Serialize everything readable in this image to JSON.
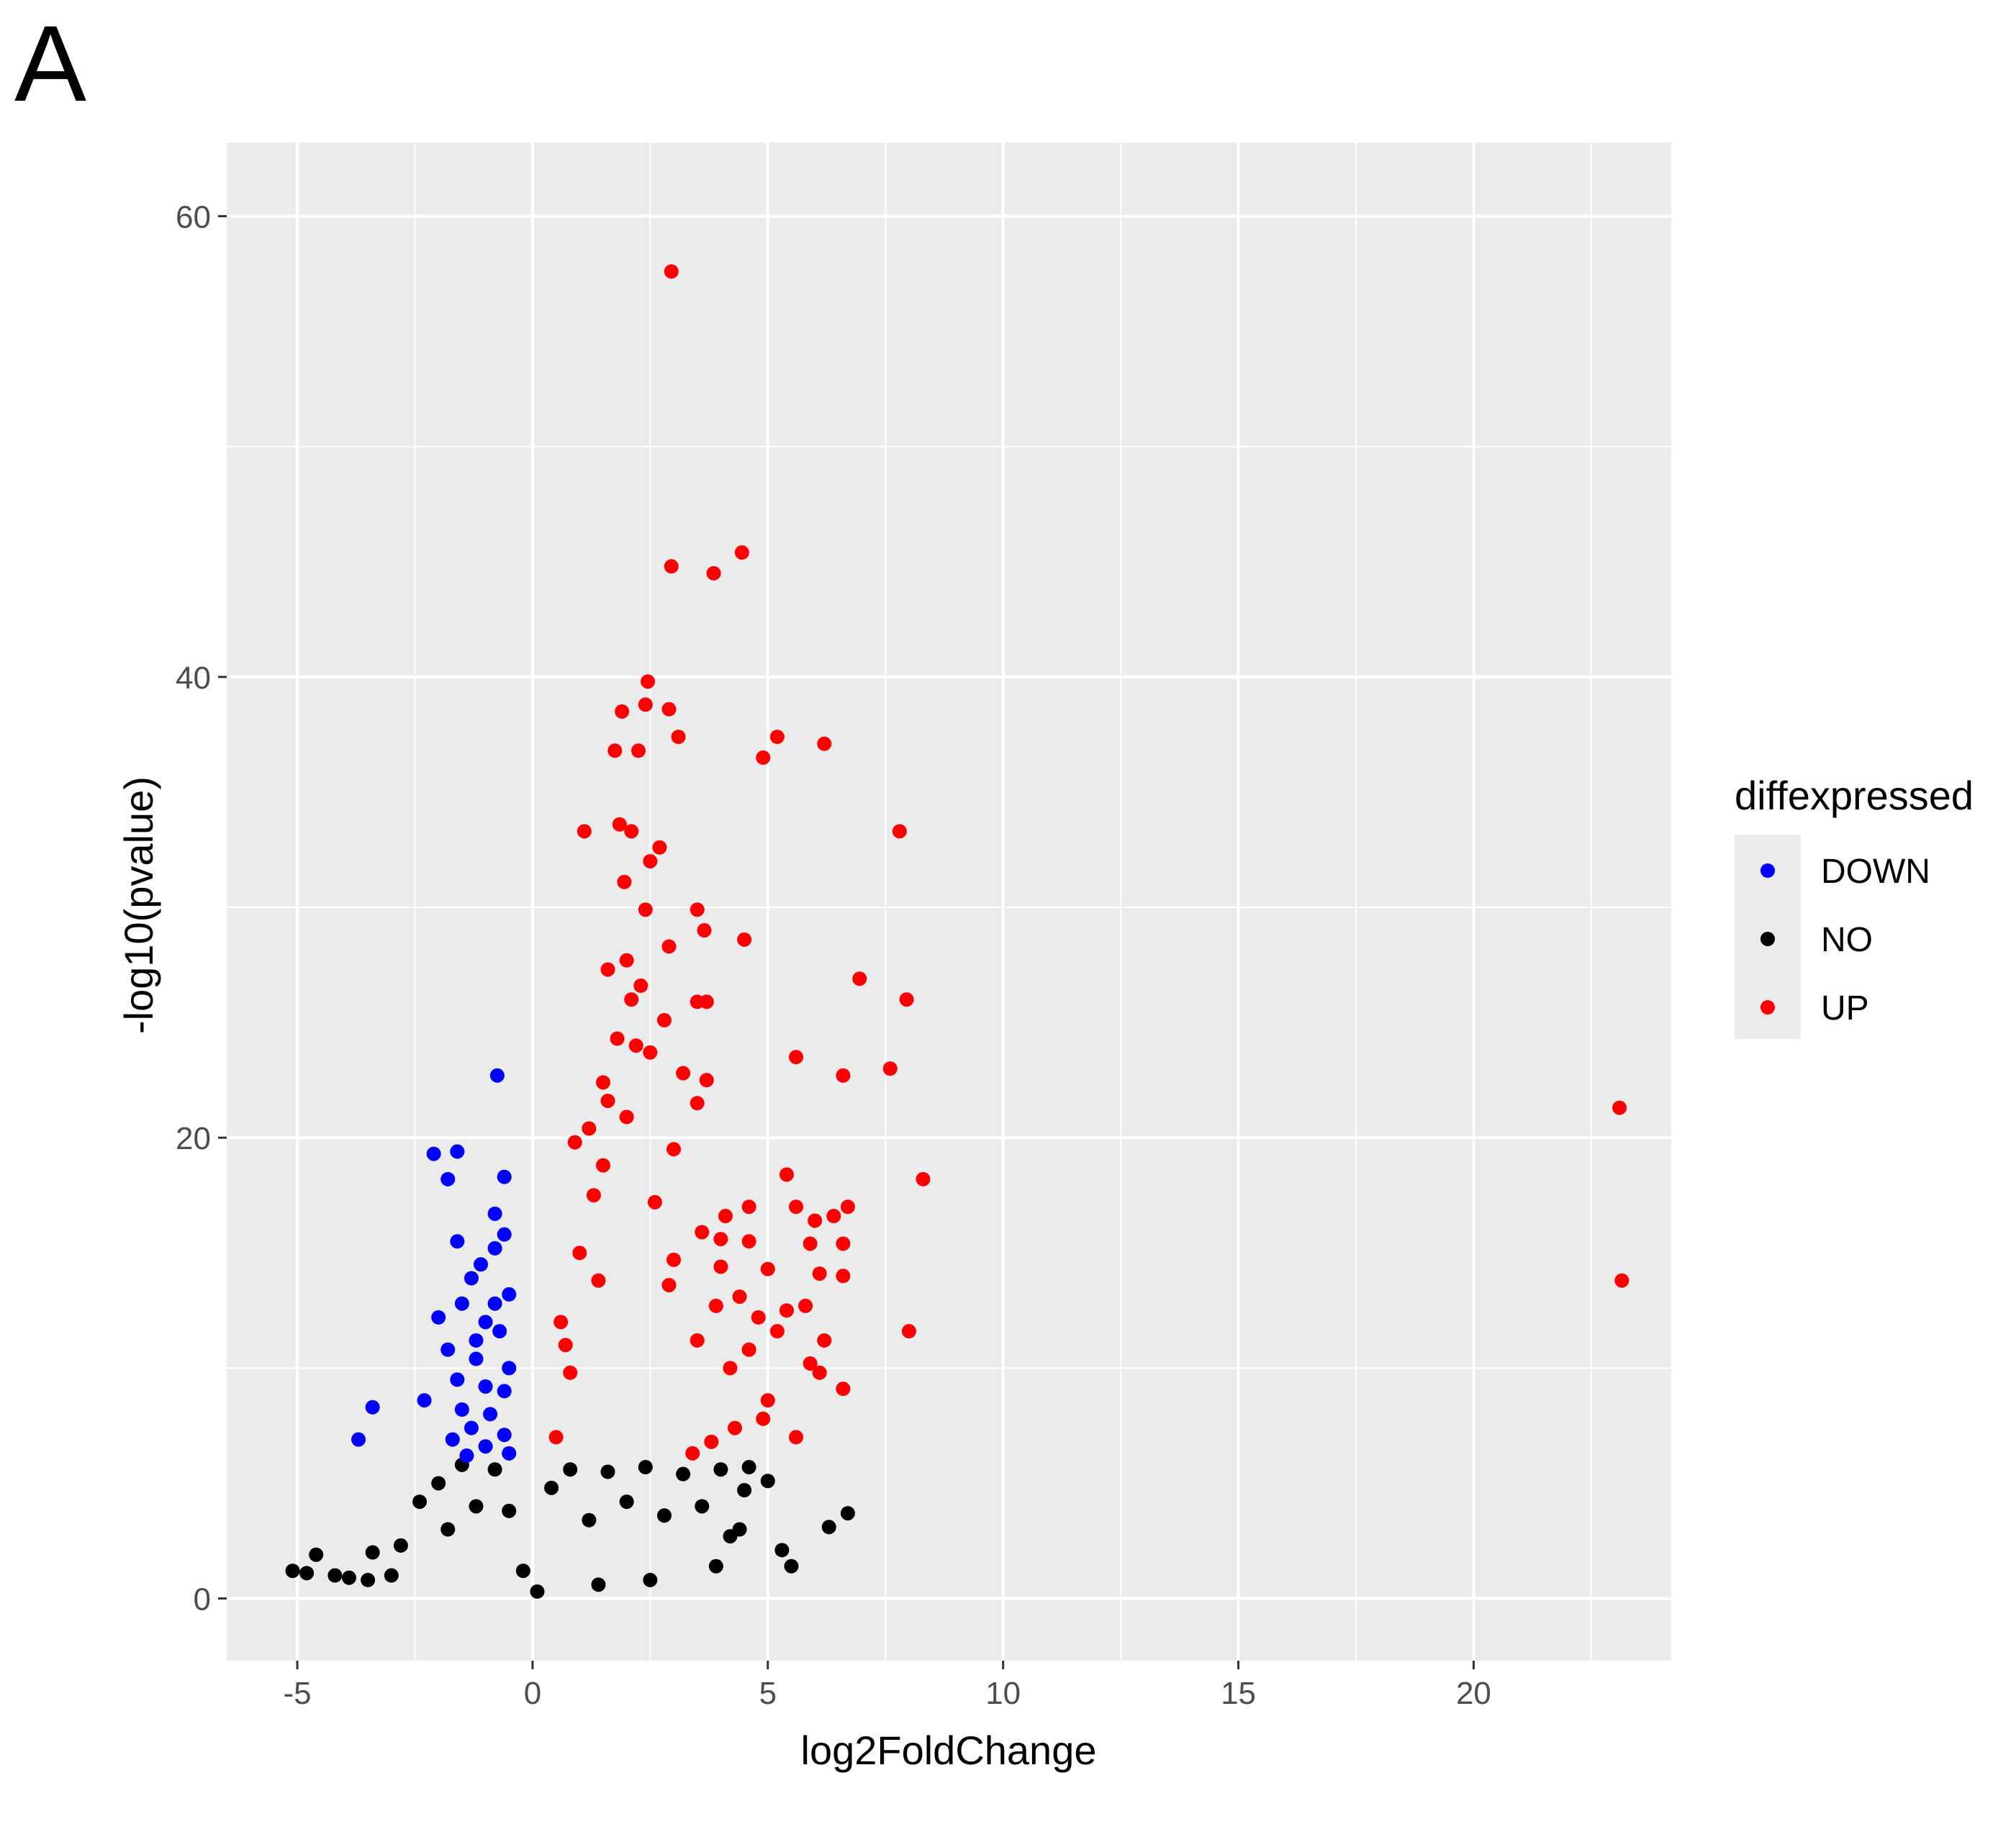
{
  "panel_label": "A",
  "chart_data": {
    "type": "scatter",
    "title": "",
    "xlabel": "log2FoldChange",
    "ylabel": "-log10(pvalue)",
    "xlim": [
      -6.5,
      24.2
    ],
    "ylim": [
      -2.7,
      63.2
    ],
    "x_ticks": [
      -5,
      0,
      5,
      10,
      15,
      20
    ],
    "x_tick_labels": [
      "-5",
      "0",
      "5",
      "10",
      "15",
      "20"
    ],
    "y_ticks": [
      0,
      20,
      40,
      60
    ],
    "y_tick_labels": [
      "0",
      "20",
      "40",
      "60"
    ],
    "grid": true,
    "background": "#ebebeb",
    "legend": {
      "title": "diffexpressed",
      "position": "right",
      "entries": [
        {
          "label": "DOWN",
          "color": "#0000ff"
        },
        {
          "label": "NO",
          "color": "#000000"
        },
        {
          "label": "UP",
          "color": "#ff0000"
        }
      ]
    },
    "series": [
      {
        "name": "DOWN",
        "color": "#0000ff",
        "points": [
          [
            -0.75,
            22.7
          ],
          [
            -2.1,
            19.3
          ],
          [
            -1.6,
            19.4
          ],
          [
            -1.8,
            18.2
          ],
          [
            -0.6,
            18.3
          ],
          [
            -0.8,
            16.7
          ],
          [
            -0.6,
            15.8
          ],
          [
            -0.8,
            15.2
          ],
          [
            -1.6,
            15.5
          ],
          [
            -1.1,
            14.5
          ],
          [
            -1.3,
            13.9
          ],
          [
            -0.5,
            13.2
          ],
          [
            -1.5,
            12.8
          ],
          [
            -1.0,
            12.0
          ],
          [
            -2.0,
            12.2
          ],
          [
            -0.7,
            11.6
          ],
          [
            -1.8,
            10.8
          ],
          [
            -1.2,
            10.4
          ],
          [
            -0.5,
            10.0
          ],
          [
            -1.6,
            9.5
          ],
          [
            -1.0,
            9.2
          ],
          [
            -2.3,
            8.6
          ],
          [
            -3.4,
            8.3
          ],
          [
            -3.7,
            6.9
          ],
          [
            -1.5,
            8.2
          ],
          [
            -0.9,
            8.0
          ],
          [
            -1.3,
            7.4
          ],
          [
            -0.6,
            7.1
          ],
          [
            -1.7,
            6.9
          ],
          [
            -1.0,
            6.6
          ],
          [
            -0.5,
            6.3
          ],
          [
            -1.4,
            6.2
          ],
          [
            -0.8,
            12.8
          ],
          [
            -1.2,
            11.2
          ],
          [
            -0.6,
            9.0
          ]
        ]
      },
      {
        "name": "NO",
        "color": "#000000",
        "points": [
          [
            -5.1,
            1.2
          ],
          [
            -4.8,
            1.1
          ],
          [
            -4.6,
            1.9
          ],
          [
            -4.2,
            1.0
          ],
          [
            -3.9,
            0.9
          ],
          [
            -3.5,
            0.8
          ],
          [
            -3.4,
            2.0
          ],
          [
            -3.0,
            1.0
          ],
          [
            -2.8,
            2.3
          ],
          [
            -2.4,
            4.2
          ],
          [
            -2.0,
            5.0
          ],
          [
            -1.8,
            3.0
          ],
          [
            -1.5,
            5.8
          ],
          [
            -1.2,
            4.0
          ],
          [
            -0.8,
            5.6
          ],
          [
            -0.5,
            3.8
          ],
          [
            -0.2,
            1.2
          ],
          [
            0.1,
            0.3
          ],
          [
            0.4,
            4.8
          ],
          [
            0.8,
            5.6
          ],
          [
            1.2,
            3.4
          ],
          [
            1.6,
            5.5
          ],
          [
            2.0,
            4.2
          ],
          [
            2.4,
            5.7
          ],
          [
            2.8,
            3.6
          ],
          [
            3.2,
            5.4
          ],
          [
            3.6,
            4.0
          ],
          [
            4.0,
            5.6
          ],
          [
            4.4,
            3.0
          ],
          [
            4.5,
            4.7
          ],
          [
            4.6,
            5.7
          ],
          [
            5.0,
            5.1
          ],
          [
            5.3,
            2.1
          ],
          [
            5.5,
            1.4
          ],
          [
            6.3,
            3.1
          ],
          [
            6.7,
            3.7
          ],
          [
            4.2,
            2.7
          ],
          [
            3.9,
            1.4
          ],
          [
            2.5,
            0.8
          ],
          [
            1.4,
            0.6
          ]
        ]
      },
      {
        "name": "UP",
        "color": "#ff0000",
        "points": [
          [
            2.95,
            57.6
          ],
          [
            2.95,
            44.8
          ],
          [
            3.85,
            44.5
          ],
          [
            4.45,
            45.4
          ],
          [
            2.45,
            39.8
          ],
          [
            2.4,
            38.8
          ],
          [
            1.9,
            38.5
          ],
          [
            2.9,
            38.6
          ],
          [
            3.1,
            37.4
          ],
          [
            5.2,
            37.4
          ],
          [
            6.2,
            37.1
          ],
          [
            4.9,
            36.5
          ],
          [
            1.75,
            36.8
          ],
          [
            2.25,
            36.8
          ],
          [
            1.1,
            33.3
          ],
          [
            1.85,
            33.6
          ],
          [
            2.1,
            33.3
          ],
          [
            7.8,
            33.3
          ],
          [
            2.7,
            32.6
          ],
          [
            2.5,
            32.0
          ],
          [
            1.95,
            31.1
          ],
          [
            2.4,
            29.9
          ],
          [
            3.5,
            29.9
          ],
          [
            3.65,
            29.0
          ],
          [
            2.9,
            28.3
          ],
          [
            4.5,
            28.6
          ],
          [
            2.0,
            27.7
          ],
          [
            1.6,
            27.3
          ],
          [
            6.95,
            26.9
          ],
          [
            2.3,
            26.6
          ],
          [
            2.1,
            26.0
          ],
          [
            3.5,
            25.9
          ],
          [
            7.95,
            26.0
          ],
          [
            3.7,
            25.9
          ],
          [
            2.8,
            25.1
          ],
          [
            2.2,
            24.0
          ],
          [
            2.5,
            23.7
          ],
          [
            5.6,
            23.5
          ],
          [
            3.2,
            22.8
          ],
          [
            7.6,
            23.0
          ],
          [
            6.6,
            22.7
          ],
          [
            3.7,
            22.5
          ],
          [
            1.5,
            22.4
          ],
          [
            3.5,
            21.5
          ],
          [
            2.0,
            20.9
          ],
          [
            23.1,
            21.3
          ],
          [
            1.2,
            20.4
          ],
          [
            3.0,
            19.5
          ],
          [
            1.5,
            18.8
          ],
          [
            5.4,
            18.4
          ],
          [
            8.3,
            18.2
          ],
          [
            2.6,
            17.2
          ],
          [
            4.6,
            17.0
          ],
          [
            5.6,
            17.0
          ],
          [
            6.7,
            17.0
          ],
          [
            6.0,
            16.4
          ],
          [
            4.1,
            16.6
          ],
          [
            6.4,
            16.6
          ],
          [
            3.6,
            15.9
          ],
          [
            4.0,
            15.6
          ],
          [
            4.6,
            15.5
          ],
          [
            5.9,
            15.4
          ],
          [
            6.6,
            15.4
          ],
          [
            3.0,
            14.7
          ],
          [
            4.0,
            14.4
          ],
          [
            5.0,
            14.3
          ],
          [
            6.1,
            14.1
          ],
          [
            6.6,
            14.0
          ],
          [
            2.9,
            13.6
          ],
          [
            4.4,
            13.1
          ],
          [
            23.15,
            13.8
          ],
          [
            3.9,
            12.7
          ],
          [
            5.4,
            12.5
          ],
          [
            5.8,
            12.7
          ],
          [
            4.8,
            12.2
          ],
          [
            5.2,
            11.6
          ],
          [
            6.2,
            11.2
          ],
          [
            8.0,
            11.6
          ],
          [
            3.5,
            11.2
          ],
          [
            4.6,
            10.8
          ],
          [
            5.9,
            10.2
          ],
          [
            6.1,
            9.8
          ],
          [
            4.2,
            10.0
          ],
          [
            6.6,
            9.1
          ],
          [
            5.0,
            8.6
          ],
          [
            4.9,
            7.8
          ],
          [
            5.6,
            7.0
          ],
          [
            4.3,
            7.4
          ],
          [
            3.8,
            6.8
          ],
          [
            3.4,
            6.3
          ],
          [
            0.5,
            7.0
          ],
          [
            0.8,
            9.8
          ],
          [
            0.6,
            12.0
          ],
          [
            1.0,
            15.0
          ],
          [
            1.3,
            17.5
          ],
          [
            0.9,
            19.8
          ],
          [
            1.6,
            21.6
          ],
          [
            1.8,
            24.3
          ],
          [
            0.7,
            11.0
          ],
          [
            1.4,
            13.8
          ]
        ]
      }
    ]
  }
}
